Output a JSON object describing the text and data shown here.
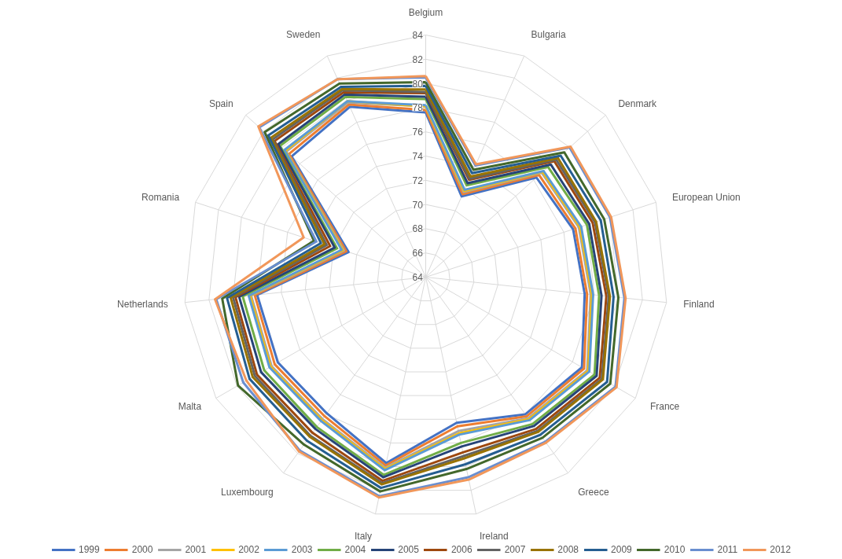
{
  "chart_data": {
    "type": "radar",
    "categories": [
      "Belgium",
      "Bulgaria",
      "Denmark",
      "European Union",
      "Finland",
      "France",
      "Greece",
      "Ireland",
      "Italy",
      "Luxembourg",
      "Malta",
      "Netherlands",
      "Romania",
      "Spain",
      "Sweden"
    ],
    "ylim": [
      64,
      84
    ],
    "yticks": [
      64,
      66,
      68,
      70,
      72,
      74,
      76,
      78,
      80,
      82,
      84
    ],
    "grid": true,
    "legend": "bottom",
    "series": [
      {
        "name": "1999",
        "color": "#4472c4",
        "values": [
          77.6,
          71.3,
          76.3,
          76.8,
          77.2,
          78.9,
          78.0,
          76.3,
          79.7,
          77.9,
          78.1,
          78.0,
          70.7,
          78.9,
          79.4
        ]
      },
      {
        "name": "2000",
        "color": "#ed7d31",
        "values": [
          77.8,
          71.5,
          76.6,
          77.0,
          77.4,
          79.1,
          78.2,
          76.6,
          79.9,
          78.2,
          78.4,
          78.2,
          70.9,
          79.2,
          79.6
        ]
      },
      {
        "name": "2001",
        "color": "#a5a5a5",
        "values": [
          78.1,
          71.7,
          76.9,
          77.3,
          77.7,
          79.4,
          78.4,
          77.0,
          80.1,
          78.5,
          78.7,
          78.5,
          71.1,
          79.5,
          79.8
        ]
      },
      {
        "name": "2002",
        "color": "#ffc000",
        "values": [
          78.1,
          71.8,
          77.0,
          77.4,
          77.8,
          79.5,
          78.5,
          77.2,
          80.2,
          78.6,
          78.8,
          78.6,
          71.2,
          79.6,
          79.9
        ]
      },
      {
        "name": "2003",
        "color": "#5b9bd5",
        "values": [
          78.2,
          71.9,
          77.1,
          77.5,
          77.9,
          79.6,
          78.6,
          77.3,
          80.3,
          78.7,
          78.9,
          78.7,
          71.3,
          79.7,
          79.9
        ]
      },
      {
        "name": "2004",
        "color": "#70ad47",
        "values": [
          78.7,
          72.3,
          77.6,
          78.0,
          78.4,
          80.1,
          79.0,
          78.0,
          80.7,
          79.3,
          79.4,
          79.2,
          71.7,
          80.2,
          80.3
        ]
      },
      {
        "name": "2005",
        "color": "#264478",
        "values": [
          78.9,
          72.5,
          77.9,
          78.2,
          78.6,
          80.3,
          79.2,
          78.3,
          80.9,
          79.5,
          79.7,
          79.5,
          71.9,
          80.4,
          80.5
        ]
      },
      {
        "name": "2006",
        "color": "#9e480e",
        "values": [
          79.2,
          72.8,
          78.3,
          78.5,
          79.0,
          80.6,
          79.5,
          78.8,
          81.2,
          79.9,
          80.1,
          79.8,
          72.3,
          80.8,
          80.7
        ]
      },
      {
        "name": "2007",
        "color": "#636363",
        "values": [
          79.3,
          72.9,
          78.5,
          78.7,
          79.2,
          80.8,
          79.7,
          79.1,
          81.4,
          80.2,
          80.3,
          80.0,
          72.6,
          81.0,
          80.9
        ]
      },
      {
        "name": "2008",
        "color": "#997300",
        "values": [
          79.5,
          73.1,
          78.7,
          78.8,
          79.3,
          80.9,
          79.8,
          79.3,
          81.5,
          80.3,
          80.5,
          80.2,
          72.8,
          81.2,
          81.0
        ]
      },
      {
        "name": "2009",
        "color": "#255e91",
        "values": [
          79.8,
          73.4,
          79.0,
          79.2,
          79.6,
          81.3,
          80.1,
          79.8,
          81.8,
          80.7,
          80.8,
          80.5,
          73.1,
          81.5,
          81.2
        ]
      },
      {
        "name": "2010",
        "color": "#43682b",
        "values": [
          80.1,
          73.7,
          79.4,
          79.5,
          80.0,
          81.6,
          80.4,
          80.2,
          82.1,
          81.1,
          81.9,
          80.9,
          73.7,
          81.9,
          81.5
        ]
      },
      {
        "name": "2011",
        "color": "#698ed0",
        "values": [
          80.5,
          74.1,
          80.0,
          80.0,
          80.5,
          82.1,
          80.8,
          80.9,
          82.5,
          81.7,
          81.4,
          81.4,
          73.5,
          82.5,
          81.9
        ]
      },
      {
        "name": "2012",
        "color": "#f1975a",
        "values": [
          80.6,
          74.2,
          80.1,
          80.1,
          80.6,
          82.2,
          80.9,
          81.1,
          82.6,
          81.8,
          81.1,
          81.5,
          74.6,
          82.6,
          81.9
        ]
      }
    ]
  }
}
